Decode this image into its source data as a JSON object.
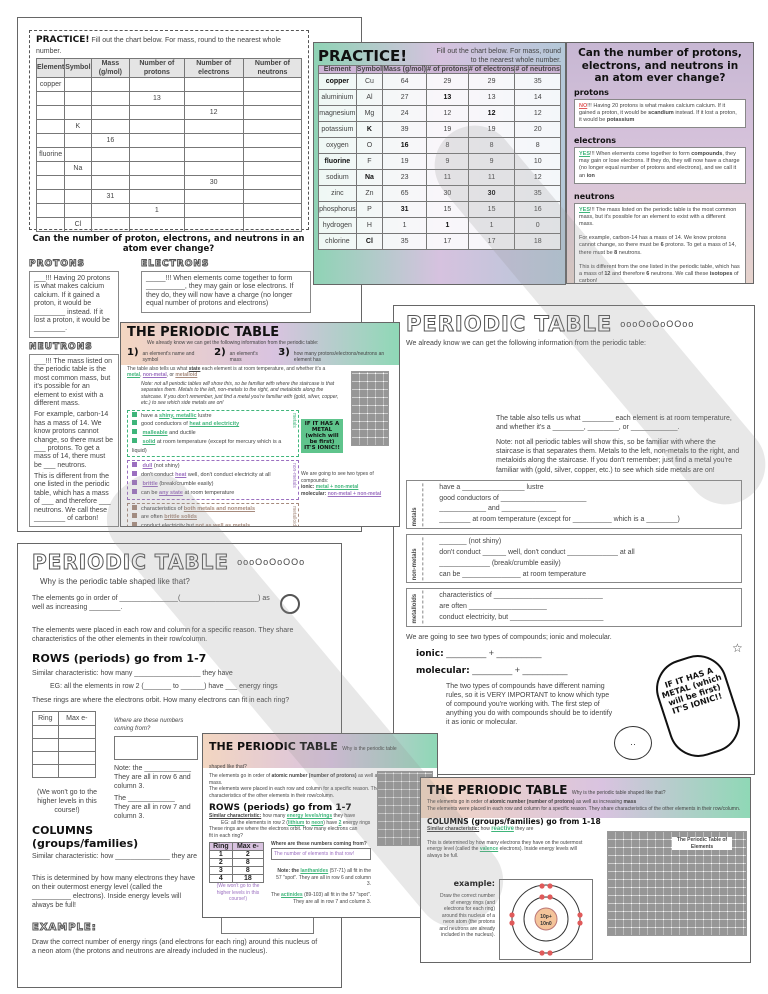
{
  "worksheet_practice": {
    "title": "PRACTICE!",
    "instructions": "Fill out the chart below. For mass, round to the nearest whole number.",
    "headers": [
      "Element",
      "Symbol",
      "Mass (g/mol)",
      "Number of protons",
      "Number of electrons",
      "Number of neutrons"
    ],
    "rows": [
      [
        "copper",
        "",
        "",
        "",
        "",
        ""
      ],
      [
        "",
        "",
        "",
        "13",
        "",
        ""
      ],
      [
        "",
        "",
        "",
        "",
        "12",
        ""
      ],
      [
        "",
        "K",
        "",
        "",
        "",
        ""
      ],
      [
        "",
        "",
        "16",
        "",
        "",
        ""
      ],
      [
        "fluorine",
        "",
        "",
        "",
        "",
        ""
      ],
      [
        "",
        "Na",
        "",
        "",
        "",
        ""
      ],
      [
        "",
        "",
        "",
        "",
        "30",
        ""
      ],
      [
        "",
        "",
        "31",
        "",
        "",
        ""
      ],
      [
        "",
        "",
        "",
        "1",
        "",
        ""
      ],
      [
        "",
        "Cl",
        "",
        "",
        "",
        ""
      ]
    ],
    "question": "Can the number of proton, electrons, and neutrons in an atom ever change?",
    "protons_label": "PROTONS",
    "protons_text": "___!!! Having 20 protons is what makes calcium calcium. If it gained a proton, it would be ________ instead. If it lost a proton, it would be ________.",
    "electrons_label": "ELECTRONS",
    "electrons_text": "_____!!! When elements come together to form __________, they may gain or lose electrons. If they do, they will now have a charge (no longer equal number of protons and electrons)",
    "neutrons_label": "NEUTRONS",
    "neutrons_text": "___!!! The mass listed on the periodic table is the most common mass, but it's possible for an element to exist with a different mass.",
    "neutrons_example": "For example, carbon-14 has a mass of 14. We know protons cannot change, so there must be ___ protons. To get a mass of 14, there must be ___ neutrons.",
    "neutrons_diff": "This is different from the one listed in the periodic table, which has a mass of ___ and therefore ___ neutrons. We call these ________ of carbon!"
  },
  "practice_answers": {
    "title": "PRACTICE!",
    "instructions": "Fill out the chart below. For mass, round to the nearest whole number.",
    "headers": [
      "Element",
      "Symbol",
      "Mass (g/mol)",
      "# of protons",
      "# of electrons",
      "# of neutrons"
    ],
    "rows": [
      [
        "copper",
        "Cu",
        "64",
        "29",
        "29",
        "35"
      ],
      [
        "aluminium",
        "Al",
        "27",
        "13",
        "13",
        "14"
      ],
      [
        "magnesium",
        "Mg",
        "24",
        "12",
        "12",
        "12"
      ],
      [
        "potassium",
        "K",
        "39",
        "19",
        "19",
        "20"
      ],
      [
        "oxygen",
        "O",
        "16",
        "8",
        "8",
        "8"
      ],
      [
        "fluorine",
        "F",
        "19",
        "9",
        "9",
        "10"
      ],
      [
        "sodium",
        "Na",
        "23",
        "11",
        "11",
        "12"
      ],
      [
        "zinc",
        "Zn",
        "65",
        "30",
        "30",
        "35"
      ],
      [
        "phosphorus",
        "P",
        "31",
        "15",
        "15",
        "16"
      ],
      [
        "hydrogen",
        "H",
        "1",
        "1",
        "1",
        "0"
      ],
      [
        "chlorine",
        "Cl",
        "35",
        "17",
        "17",
        "18"
      ]
    ]
  },
  "change_answers": {
    "title": "Can the number of protons, electrons, and neutrons in an atom ever change?",
    "protons_label": "protons",
    "protons_answer": "NO",
    "protons_text": "!!! Having 20 protons is what makes calcium calcium. If it gained a proton, it would be",
    "protons_a1": "scandium",
    "protons_text2": "instead. If it lost a proton, it would be",
    "protons_a2": "potassium",
    "electrons_label": "electrons",
    "electrons_answer": "YES",
    "electrons_text": "!!! When elements come together to form",
    "electrons_a1": "compounds",
    "electrons_text2": ", they may gain or lose electrons. If they do, they will now have a charge (no longer equal number of protons and electrons), and we call it an",
    "electrons_a2": "ion",
    "neutrons_label": "neutrons",
    "neutrons_answer": "YES",
    "neutrons_text": "!!! The mass listed on the periodic table is the most common mass, but it's possible for an element to exist with a different mass.",
    "ex1": "For example, carbon-14 has a mass of 14. We know protons cannot change, so there must be",
    "ex_a1": "6",
    "ex2": "protons. To get a mass of 14, there must be",
    "ex_a2": "8",
    "ex3": "neutrons.",
    "diff1": "This is different from the one listed in the periodic table, which has a mass of",
    "diff_a1": "12",
    "diff2": "and therefore",
    "diff_a2": "6",
    "diff3": "neutrons. We call these",
    "diff_a3": "isotopes",
    "diff4": "of carbon!"
  },
  "pt_blank_right": {
    "title": "PERIODIC TABLE",
    "intro": "We already know we can get the following information from the periodic table:",
    "state_line": "The table also tells us what ________ each element is at room temperature, and whether it's a ________, ________, or ____________.",
    "note": "Note: not all periodic tables will show this, so be familiar with where the staircase is that separates them. Metals to the left, non-metals to the right, and metaloids along the staircase. If you don't remember; just find a metal you're familiar with (gold, silver, copper, etc.) to see which side metals are on!",
    "metals_label": "metals",
    "metals": [
      "have a ________________ lustre",
      "good conductors of ______________________",
      "____________ and ______________",
      "________ at room temperature (except for __________ which is a ________)"
    ],
    "nonmetals_label": "non-metals",
    "nonmetals": [
      "_______ (not shiny)",
      "don't conduct ______ well, don't conduct _____________ at all",
      "_____________ (break/crumble easily)",
      "can be _______________ at room temperature"
    ],
    "metalloids_label": "metalloids",
    "metalloids": [
      "characteristics of ____________________________",
      "are often ____________________",
      "conduct electricity, but ________________________"
    ],
    "compounds": "We are going to see two types of compounds; ionic and molecular.",
    "ionic": "ionic:",
    "ionic_blank": "________ + _________",
    "molecular": "molecular:",
    "molecular_blank": "________ + _________",
    "naming": "The two types of compounds have different naming rules, so it is VERY IMPORTANT to know which type of compound you're working with. The first step of anything you do with compounds should be to identify it as ionic or molecular.",
    "bubble": "IF IT HAS A METAL (which will be first) IT'S IONIC!!"
  },
  "pt_answers_mid": {
    "title": "THE PERIODIC TABLE",
    "intro": "We already know we can get the following information from the periodic table:",
    "n1": "1)",
    "i1": "an element's name and symbol",
    "n2": "2)",
    "i2": "an element's mass",
    "n3": "3)",
    "i3": "how many protons/electrons/neutrons an element has",
    "state1": "The table also tells us what",
    "state_a": "state",
    "state2": "each element is at room temperature, and whether it's a",
    "metal": "metal",
    "nonmetal": "non-metal",
    "or": "or",
    "metalloid": "metalloid",
    "note": "Note: not all periodic tables will show this, so be familiar with where the staircase is that separates them. Metals to the left, non-metals to the right, and metaloids along the staircase. If you don't remember, just find a metal you're familiar with (gold, silver, copper, etc.) to see which side metals are on!",
    "metals_label": "metals",
    "metals": [
      [
        "have a",
        "shiny, metallic",
        "lustre"
      ],
      [
        "good conductors of",
        "heat and electricity",
        ""
      ],
      [
        "",
        "malleable",
        "and ductile"
      ],
      [
        "",
        "solid",
        "at room temperature (except for mercury which is a liquid)"
      ]
    ],
    "nonmetals_label": "non-metals",
    "nonmetals": [
      [
        "",
        "dull",
        "(not shiny)"
      ],
      [
        "don't conduct",
        "heat",
        "well, don't conduct electricity at all"
      ],
      [
        "",
        "brittle",
        "(break/crumble easily)"
      ],
      [
        "can be",
        "any state",
        "at room temperature"
      ]
    ],
    "metalloids_label": "metalloids",
    "metalloids": [
      [
        "characteristics of",
        "both metals and nonmetals",
        ""
      ],
      [
        "are often",
        "brittle solids",
        ""
      ],
      [
        "conduct electricity but",
        "not as well as metals",
        ""
      ]
    ],
    "bubble": "IF IT HAS A METAL (which will be first) IT'S IONIC!!",
    "compounds": "We are going to see two types of compounds:",
    "ionic": "ionic:",
    "ionic_ans": "metal + non-metal",
    "molecular": "molecular:",
    "molecular_ans": "non-metal + non-metal",
    "naming": "The two types of compounds have different naming rules so it is VERY IMPORTANT to know which type of compound you're working with. The first step of anything you do with compounds should be to identify it as ionic or molecular.",
    "pt_title": "The Periodic Table of Elements"
  },
  "pt_blank_left": {
    "title": "PERIODIC TABLE",
    "question": "Why is the periodic table shaped like that?",
    "order": "The elements go in order of _______________(____________________) as well as increasing ________.",
    "placed": "The elements were placed in each row and column for a specific reason. They share characteristics of the other elements in their row/column.",
    "rows_title": "ROWS (periods) go from 1-7",
    "rows_sim": "Similar characteristic: how many _________________ they have",
    "rows_eg": "EG: all the elements in row 2 (_______ to ______) have ___ energy rings",
    "rings": "These rings are where the electrons orbit. How many electrons can fit in each ring?",
    "ring_headers": [
      "Ring",
      "Max e-"
    ],
    "where": "Where are these numbers coming from?",
    "note1": "Note: the ____________",
    "note1b": "They are all in row 6 and column 3.",
    "note2": "The ____________",
    "note2b": "They are all in row 7 and column 3.",
    "higher": "(We won't go to the higher levels in this course!)",
    "cols_title": "COLUMNS (groups/families)",
    "cols_sim": "Similar characteristic: how ______________ they are",
    "cols_det": "This is determined by how many electrons they have on their outermost energy level (called the __________ electrons). Inside energy levels will always be full!",
    "example": "EXAMPLE:",
    "example_text": "Draw the correct number of energy rings (and electrons for each ring) around this nucleus of a neon atom (the protons and neutrons are already included in the nucleus)."
  },
  "rows_answers": {
    "title": "THE PERIODIC TABLE",
    "question": "Why is the periodic table shaped like that?",
    "order": "The elements go in order of",
    "order_ans": "atomic number (number of protons)",
    "order2": "as well as increasing mass.",
    "placed": "The elements were placed in each row and column for a specific reason. They share characteristics of the other elements in their row/column.",
    "rows_title": "ROWS (periods) go from 1-7",
    "sim": "Similar characteristic:",
    "sim2": "how many",
    "sim_ans": "energy levels/rings",
    "sim3": "they have",
    "eg1": "EG: all the elements in row 2 (",
    "eg_a1": "lithium",
    "eg2": "to",
    "eg_a2": "neon",
    "eg3": ") have",
    "eg_a3": "2",
    "eg4": "energy rings",
    "rings": "These rings are where the electrons orbit. How many electrons can fit in each ring?",
    "ring_headers": [
      "Ring",
      "Max e-"
    ],
    "ring_rows": [
      [
        "1",
        "2"
      ],
      [
        "2",
        "8"
      ],
      [
        "3",
        "8"
      ],
      [
        "4",
        "18"
      ]
    ],
    "higher": "(We won't go to the higher levels in this course!)",
    "where": "Where are these numbers coming from?",
    "where_ans": "The number of elements in that row!",
    "note1": "Note: the",
    "note1_ans": "lanthanides",
    "note1b": "(57-71) all fit in the 57 \"spot\". They are all in row 6 and column 3.",
    "note2": "The",
    "note2_ans": "actinides",
    "note2b": "(89-103) all fit in the 57 \"spot\". They are all in row 7 and column 3."
  },
  "columns_answers": {
    "title": "THE PERIODIC TABLE",
    "question": "Why is the periodic table shaped like that?",
    "order": "The elements go in order of",
    "order_ans": "atomic number (number of protons)",
    "order2": "as well as increasing",
    "order_ans2": "mass",
    "placed": "The elements were placed in each row and column for a specific reason. They share characteristics of the other elements in their row/column.",
    "cols_title": "COLUMNS (groups/families) go from 1-18",
    "sim": "Similar characteristic:",
    "sim2": "how",
    "sim_ans": "reactive",
    "sim3": "they are",
    "det1": "This is determined by how many electrons they have on the outermost energy level (called the",
    "det_ans": "valence",
    "det2": "electrons). Inside energy levels will always be full.",
    "example": "example:",
    "example_text": "Draw the correct number of energy rings (and electrons for each ring) around this nucleus of a neon atom (the protons and neutrons are already included in the nucleus).",
    "nucleus_p": "10p+",
    "nucleus_n": "10n0",
    "pt_title": "The Periodic Table of Elements"
  },
  "colors": {
    "green": "#3fb57a",
    "purple": "#9b6fc0",
    "brown": "#a68a7c",
    "red": "#e05a5a",
    "nucleus": "#f4c49a"
  },
  "icons": [
    "magnifier-icon",
    "diamond-ring-icon",
    "pencil-icon",
    "girl-cartoon-icon",
    "star-icon",
    "logo-badge-icon"
  ]
}
